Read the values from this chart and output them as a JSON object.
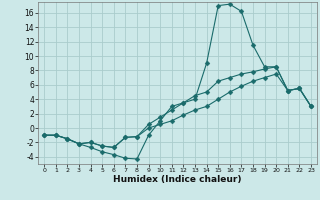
{
  "xlabel": "Humidex (Indice chaleur)",
  "background_color": "#cce8e8",
  "grid_color": "#aacccc",
  "line_color": "#1a6b6b",
  "xlim": [
    -0.5,
    23.5
  ],
  "ylim": [
    -5.0,
    17.5
  ],
  "xticks": [
    0,
    1,
    2,
    3,
    4,
    5,
    6,
    7,
    8,
    9,
    10,
    11,
    12,
    13,
    14,
    15,
    16,
    17,
    18,
    19,
    20,
    21,
    22,
    23
  ],
  "yticks": [
    -4,
    -2,
    0,
    2,
    4,
    6,
    8,
    10,
    12,
    14,
    16
  ],
  "line1_x": [
    0,
    1,
    2,
    3,
    4,
    5,
    6,
    7,
    8,
    9,
    10,
    11,
    12,
    13,
    14,
    15,
    16,
    17,
    18,
    19,
    20,
    21,
    22,
    23
  ],
  "line1_y": [
    -1.0,
    -1.0,
    -1.5,
    -2.2,
    -2.7,
    -3.3,
    -3.7,
    -4.2,
    -4.3,
    -1.0,
    1.0,
    3.0,
    3.5,
    4.0,
    9.0,
    17.0,
    17.2,
    16.2,
    11.5,
    8.5,
    8.5,
    5.2,
    5.5,
    3.0
  ],
  "line2_x": [
    0,
    1,
    2,
    3,
    4,
    5,
    6,
    7,
    8,
    9,
    10,
    11,
    12,
    13,
    14,
    15,
    16,
    17,
    18,
    19,
    20,
    21,
    22,
    23
  ],
  "line2_y": [
    -1.0,
    -1.0,
    -1.5,
    -2.2,
    -2.0,
    -2.5,
    -2.7,
    -1.3,
    -1.2,
    0.5,
    1.5,
    2.5,
    3.5,
    4.5,
    5.0,
    6.5,
    7.0,
    7.5,
    7.8,
    8.2,
    8.5,
    5.2,
    5.5,
    3.0
  ],
  "line3_x": [
    0,
    1,
    2,
    3,
    4,
    5,
    6,
    7,
    8,
    9,
    10,
    11,
    12,
    13,
    14,
    15,
    16,
    17,
    18,
    19,
    20,
    21,
    22,
    23
  ],
  "line3_y": [
    -1.0,
    -1.0,
    -1.5,
    -2.2,
    -2.0,
    -2.5,
    -2.7,
    -1.3,
    -1.2,
    0.0,
    0.5,
    1.0,
    1.8,
    2.5,
    3.0,
    4.0,
    5.0,
    5.8,
    6.5,
    7.0,
    7.5,
    5.2,
    5.5,
    3.0
  ]
}
